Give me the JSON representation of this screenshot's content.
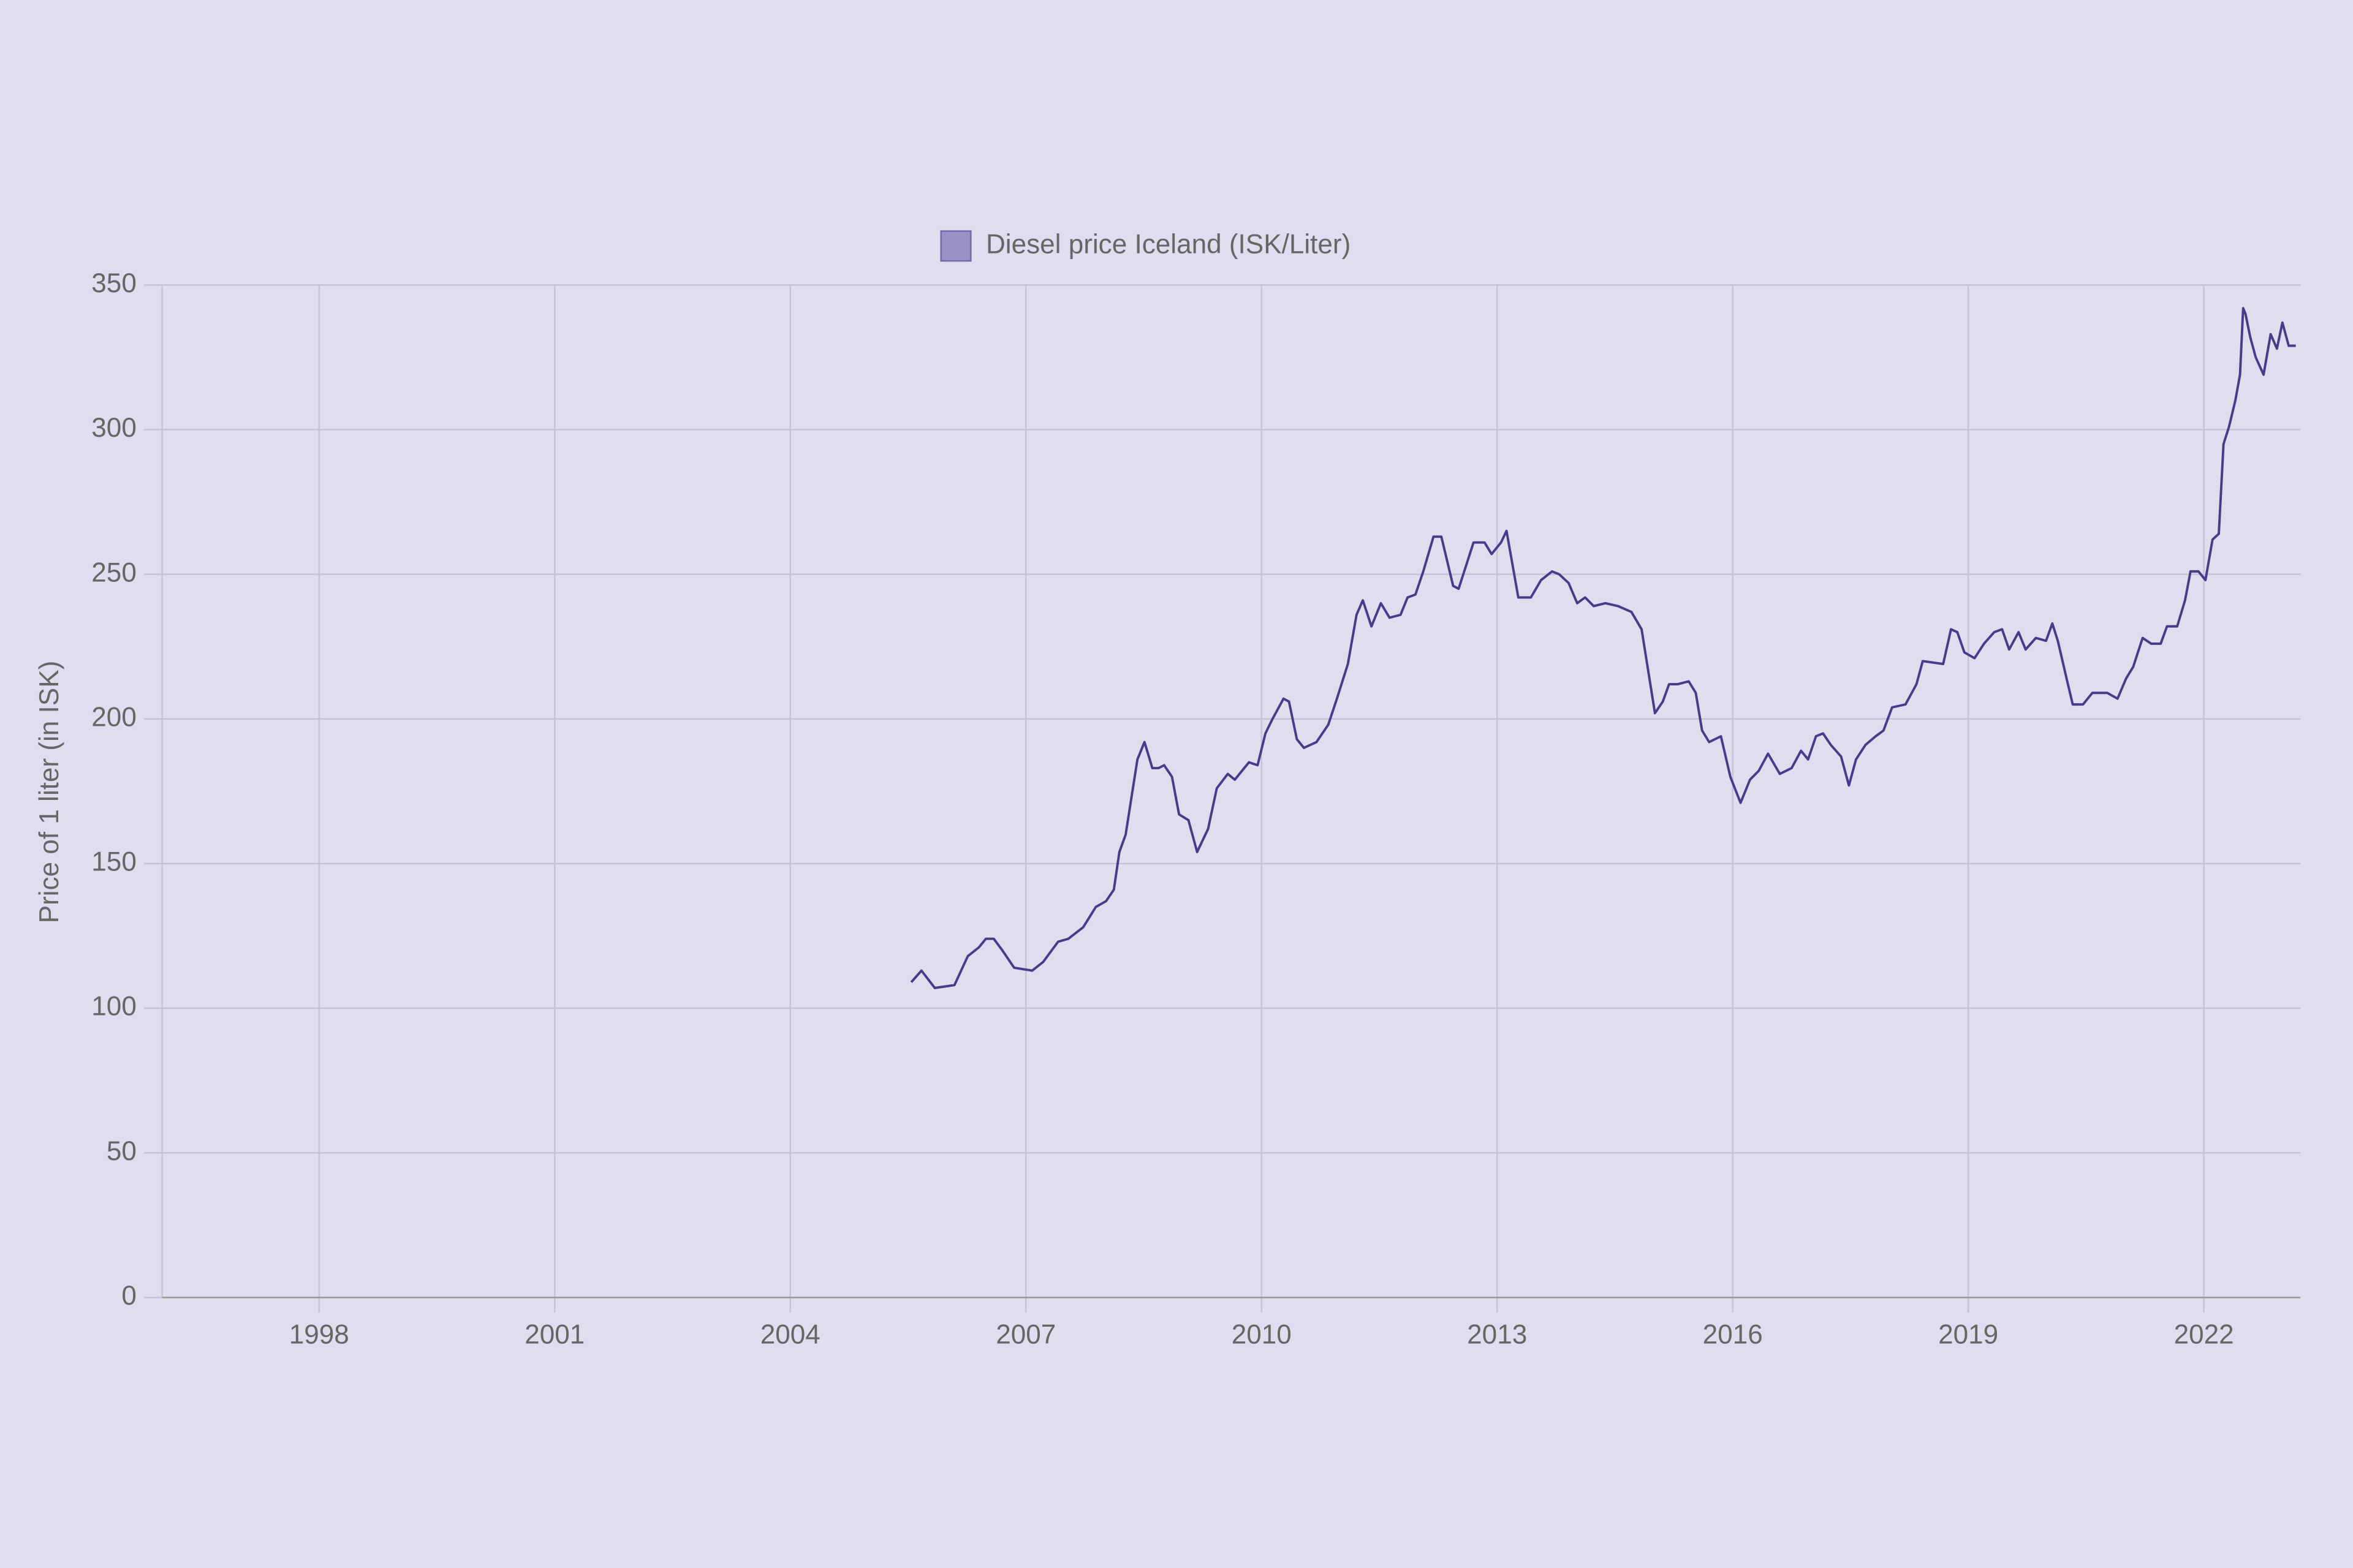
{
  "chart_data": {
    "type": "line",
    "y_label": "Price of 1 liter (in ISK)",
    "x": [
      2005.54,
      2005.67,
      2005.84,
      2006.09,
      2006.26,
      2006.4,
      2006.49,
      2006.59,
      2006.7,
      2006.85,
      2007.08,
      2007.22,
      2007.41,
      2007.54,
      2007.73,
      2007.89,
      2008.02,
      2008.12,
      2008.19,
      2008.27,
      2008.42,
      2008.51,
      2008.61,
      2008.69,
      2008.76,
      2008.86,
      2008.95,
      2009.07,
      2009.18,
      2009.32,
      2009.43,
      2009.57,
      2009.66,
      2009.84,
      2009.95,
      2010.05,
      2010.14,
      2010.28,
      2010.35,
      2010.45,
      2010.54,
      2010.7,
      2010.85,
      2010.96,
      2011.1,
      2011.21,
      2011.29,
      2011.4,
      2011.52,
      2011.63,
      2011.77,
      2011.86,
      2011.96,
      2012.06,
      2012.19,
      2012.29,
      2012.44,
      2012.51,
      2012.7,
      2012.84,
      2012.93,
      2013.05,
      2013.12,
      2013.27,
      2013.43,
      2013.56,
      2013.7,
      2013.79,
      2013.91,
      2014.02,
      2014.12,
      2014.23,
      2014.38,
      2014.54,
      2014.71,
      2014.84,
      2015.01,
      2015.11,
      2015.19,
      2015.3,
      2015.44,
      2015.53,
      2015.61,
      2015.7,
      2015.85,
      2015.97,
      2016.1,
      2016.22,
      2016.33,
      2016.45,
      2016.6,
      2016.75,
      2016.87,
      2016.96,
      2017.06,
      2017.15,
      2017.25,
      2017.38,
      2017.48,
      2017.57,
      2017.69,
      2017.82,
      2017.92,
      2018.03,
      2018.2,
      2018.34,
      2018.42,
      2018.68,
      2018.78,
      2018.86,
      2018.95,
      2019.08,
      2019.2,
      2019.33,
      2019.43,
      2019.52,
      2019.64,
      2019.73,
      2019.86,
      2019.99,
      2020.07,
      2020.14,
      2020.26,
      2020.33,
      2020.46,
      2020.58,
      2020.77,
      2020.9,
      2021.01,
      2021.1,
      2021.22,
      2021.33,
      2021.45,
      2021.53,
      2021.66,
      2021.76,
      2021.83,
      2021.93,
      2022.02,
      2022.11,
      2022.19,
      2022.25,
      2022.32,
      2022.4,
      2022.46,
      2022.5,
      2022.53,
      2022.59,
      2022.66,
      2022.76,
      2022.85,
      2022.93,
      2023.0,
      2023.08,
      2023.17
    ],
    "series": [
      {
        "name": "Diesel price Iceland (ISK/Liter)",
        "color": "#463c8a",
        "legend_fill": "#9a93c8",
        "values": [
          109,
          113,
          107,
          108,
          118,
          121,
          124,
          124,
          120,
          114,
          113,
          116,
          123,
          124,
          128,
          135,
          137,
          141,
          154,
          160,
          186,
          192,
          183,
          183,
          184,
          180,
          167,
          165,
          154,
          162,
          176,
          181,
          179,
          185,
          184,
          195,
          200,
          207,
          206,
          193,
          190,
          192,
          198,
          207,
          219,
          236,
          241,
          232,
          240,
          235,
          236,
          242,
          243,
          251,
          263,
          263,
          246,
          245,
          261,
          261,
          257,
          261,
          265,
          242,
          242,
          248,
          251,
          250,
          247,
          240,
          242,
          239,
          240,
          239,
          237,
          231,
          202,
          206,
          212,
          212,
          213,
          209,
          196,
          192,
          194,
          180,
          171,
          179,
          182,
          188,
          181,
          183,
          189,
          186,
          194,
          195,
          191,
          187,
          177,
          186,
          191,
          194,
          196,
          204,
          205,
          212,
          220,
          219,
          231,
          230,
          223,
          221,
          226,
          230,
          231,
          224,
          230,
          224,
          228,
          227,
          233,
          227,
          213,
          205,
          205,
          209,
          209,
          207,
          214,
          218,
          228,
          226,
          226,
          232,
          232,
          241,
          251,
          251,
          248,
          262,
          264,
          295,
          301,
          310,
          319,
          342,
          340,
          332,
          325,
          319,
          333,
          328,
          337,
          329,
          329
        ]
      }
    ],
    "xlim": [
      1996,
      2023.23
    ],
    "xticks": [
      1998,
      2001,
      2004,
      2007,
      2010,
      2013,
      2016,
      2019,
      2022
    ],
    "ylim": [
      0,
      350
    ],
    "yticks": [
      0,
      50,
      100,
      150,
      200,
      250,
      300,
      350
    ],
    "grid": true,
    "legend": "top"
  }
}
